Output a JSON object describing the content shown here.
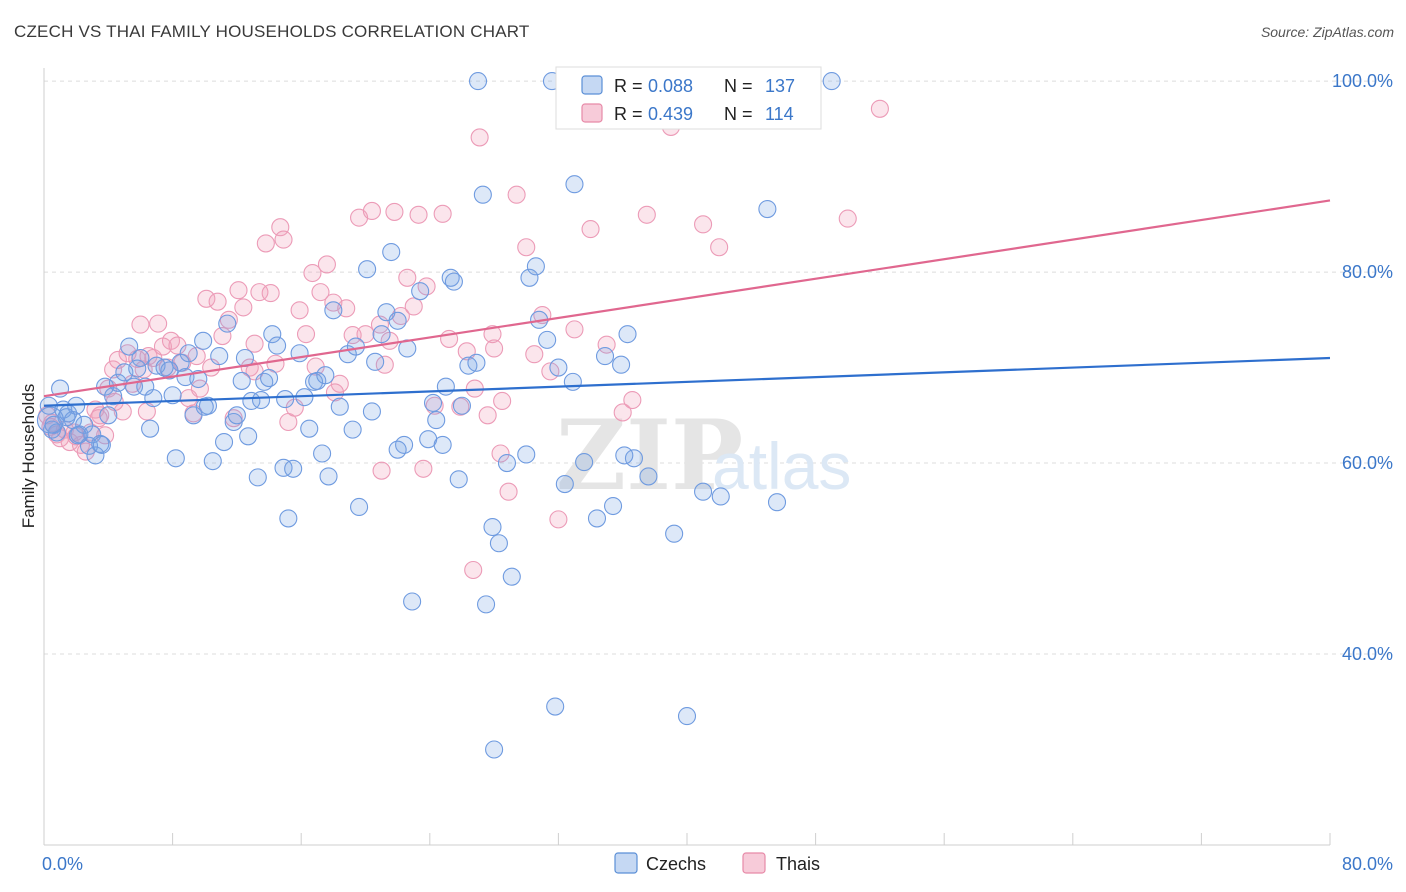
{
  "title": "CZECH VS THAI FAMILY HOUSEHOLDS CORRELATION CHART",
  "source": "Source: ZipAtlas.com",
  "watermark": {
    "zip": "ZIP",
    "atlas": "atlas"
  },
  "colors": {
    "czech": "#5b8fd6",
    "thai": "#e78aa8",
    "czech_line": "#2e6fce",
    "thai_line": "#e0678f",
    "axis_text": "#3b77c9"
  },
  "legend_top": [
    {
      "series": "Czechs",
      "r_label": "R =",
      "r_value": "0.088",
      "n_label": "N =",
      "n_value": "137"
    },
    {
      "series": "Thais",
      "r_label": "R =",
      "r_value": "0.439",
      "n_label": "N =",
      "n_value": "114"
    }
  ],
  "chart_data": {
    "type": "scatter",
    "title": "CZECH VS THAI FAMILY HOUSEHOLDS CORRELATION CHART",
    "xlabel": "",
    "ylabel": "Family Households",
    "xlim": [
      0,
      80
    ],
    "ylim": [
      20,
      102
    ],
    "x_tick_labels": [
      "0.0%",
      "80.0%"
    ],
    "y_tick_labels": [
      "40.0%",
      "60.0%",
      "80.0%",
      "100.0%"
    ],
    "y_ticks": [
      40,
      60,
      80,
      100
    ],
    "grid": "horizontal dashed",
    "legend_position": "bottom-center",
    "series": [
      {
        "name": "Czechs",
        "trend": {
          "x": [
            0,
            80
          ],
          "y": [
            66.0,
            71.0
          ]
        },
        "points": [
          [
            0.3,
            66.0
          ],
          [
            0.5,
            63.5
          ],
          [
            0.8,
            63.2
          ],
          [
            1.0,
            67.8
          ],
          [
            1.2,
            65.6
          ],
          [
            1.5,
            65.2
          ],
          [
            1.8,
            64.5
          ],
          [
            2.0,
            66.0
          ],
          [
            2.2,
            63.0
          ],
          [
            2.5,
            64.0
          ],
          [
            2.8,
            61.8
          ],
          [
            3.0,
            63.0
          ],
          [
            3.2,
            60.8
          ],
          [
            3.5,
            62.0
          ],
          [
            3.8,
            68.0
          ],
          [
            4.0,
            65.0
          ],
          [
            4.3,
            67.0
          ],
          [
            4.6,
            68.4
          ],
          [
            5.0,
            69.5
          ],
          [
            5.3,
            72.2
          ],
          [
            5.6,
            68.0
          ],
          [
            6.0,
            71.0
          ],
          [
            6.3,
            68.0
          ],
          [
            6.6,
            63.6
          ],
          [
            6.8,
            66.8
          ],
          [
            7.0,
            70.2
          ],
          [
            7.5,
            70.0
          ],
          [
            8.0,
            67.1
          ],
          [
            8.2,
            60.5
          ],
          [
            8.5,
            70.5
          ],
          [
            8.8,
            69.0
          ],
          [
            9.0,
            71.5
          ],
          [
            9.3,
            65.0
          ],
          [
            9.6,
            68.8
          ],
          [
            9.9,
            72.8
          ],
          [
            10.2,
            66.0
          ],
          [
            10.5,
            60.2
          ],
          [
            10.9,
            71.2
          ],
          [
            11.2,
            62.2
          ],
          [
            11.4,
            74.6
          ],
          [
            11.8,
            64.3
          ],
          [
            12.0,
            65.0
          ],
          [
            12.3,
            68.6
          ],
          [
            12.5,
            71.0
          ],
          [
            12.9,
            66.5
          ],
          [
            13.3,
            58.5
          ],
          [
            13.5,
            66.6
          ],
          [
            13.7,
            68.5
          ],
          [
            14.2,
            73.5
          ],
          [
            14.5,
            72.3
          ],
          [
            14.9,
            59.5
          ],
          [
            15.0,
            66.7
          ],
          [
            15.2,
            54.2
          ],
          [
            15.5,
            59.4
          ],
          [
            15.9,
            71.5
          ],
          [
            16.2,
            66.9
          ],
          [
            16.5,
            63.6
          ],
          [
            16.8,
            68.5
          ],
          [
            17.0,
            68.6
          ],
          [
            17.3,
            61.0
          ],
          [
            17.7,
            58.6
          ],
          [
            18.0,
            76.0
          ],
          [
            18.4,
            65.9
          ],
          [
            18.9,
            71.4
          ],
          [
            19.4,
            72.2
          ],
          [
            19.6,
            55.4
          ],
          [
            20.1,
            80.3
          ],
          [
            20.4,
            65.4
          ],
          [
            20.6,
            70.6
          ],
          [
            21.0,
            73.5
          ],
          [
            21.3,
            75.8
          ],
          [
            21.6,
            82.1
          ],
          [
            22.0,
            74.9
          ],
          [
            22.4,
            61.9
          ],
          [
            22.6,
            72.0
          ],
          [
            22.9,
            45.5
          ],
          [
            23.4,
            78.0
          ],
          [
            23.9,
            62.5
          ],
          [
            24.2,
            66.3
          ],
          [
            24.4,
            64.5
          ],
          [
            25.0,
            68.0
          ],
          [
            25.3,
            79.4
          ],
          [
            25.5,
            79.0
          ],
          [
            25.8,
            58.3
          ],
          [
            26.0,
            66.0
          ],
          [
            26.4,
            70.2
          ],
          [
            26.9,
            70.5
          ],
          [
            27.3,
            88.1
          ],
          [
            27.5,
            45.2
          ],
          [
            27.9,
            53.3
          ],
          [
            28.3,
            51.6
          ],
          [
            28.8,
            60.0
          ],
          [
            29.1,
            48.1
          ],
          [
            30.2,
            79.4
          ],
          [
            30.6,
            80.6
          ],
          [
            30.8,
            75.0
          ],
          [
            31.3,
            72.9
          ],
          [
            31.8,
            34.5
          ],
          [
            32.0,
            70.0
          ],
          [
            32.4,
            57.8
          ],
          [
            32.9,
            68.5
          ],
          [
            33.0,
            89.2
          ],
          [
            33.6,
            60.1
          ],
          [
            34.4,
            54.2
          ],
          [
            34.9,
            71.2
          ],
          [
            35.4,
            55.5
          ],
          [
            35.9,
            70.3
          ],
          [
            36.3,
            73.5
          ],
          [
            36.7,
            60.5
          ],
          [
            37.6,
            58.6
          ],
          [
            39.2,
            52.6
          ],
          [
            40.0,
            33.5
          ],
          [
            41.0,
            57.0
          ],
          [
            42.1,
            56.5
          ],
          [
            45.0,
            86.6
          ],
          [
            45.6,
            55.9
          ],
          [
            28.0,
            30.0
          ],
          [
            0.6,
            64.0
          ],
          [
            1.4,
            64.8
          ],
          [
            2.1,
            62.9
          ],
          [
            3.6,
            61.9
          ],
          [
            5.8,
            69.9
          ],
          [
            7.8,
            69.7
          ],
          [
            10.0,
            65.9
          ],
          [
            12.7,
            62.8
          ],
          [
            14.0,
            68.9
          ],
          [
            17.5,
            69.2
          ],
          [
            19.2,
            63.5
          ],
          [
            22.0,
            61.4
          ],
          [
            24.8,
            61.9
          ],
          [
            30.0,
            60.9
          ],
          [
            36.1,
            60.8
          ],
          [
            27.0,
            100.0
          ],
          [
            38.3,
            100.0
          ],
          [
            43.2,
            100.0
          ],
          [
            49.0,
            100.0
          ],
          [
            31.6,
            100.0
          ]
        ]
      },
      {
        "name": "Thais",
        "trend": {
          "x": [
            0,
            80
          ],
          "y": [
            67.0,
            87.5
          ]
        },
        "points": [
          [
            0.2,
            65.0
          ],
          [
            0.5,
            64.2
          ],
          [
            0.8,
            63.0
          ],
          [
            1.0,
            62.6
          ],
          [
            1.3,
            63.5
          ],
          [
            1.6,
            62.2
          ],
          [
            2.0,
            62.8
          ],
          [
            2.3,
            61.9
          ],
          [
            2.6,
            61.2
          ],
          [
            2.9,
            63.2
          ],
          [
            3.2,
            65.6
          ],
          [
            3.5,
            65.0
          ],
          [
            3.8,
            62.9
          ],
          [
            4.0,
            67.8
          ],
          [
            4.3,
            69.8
          ],
          [
            4.6,
            70.8
          ],
          [
            4.9,
            65.4
          ],
          [
            5.2,
            71.5
          ],
          [
            5.5,
            68.3
          ],
          [
            5.8,
            70.9
          ],
          [
            6.0,
            74.5
          ],
          [
            6.2,
            69.8
          ],
          [
            6.5,
            71.2
          ],
          [
            6.8,
            71.0
          ],
          [
            7.1,
            74.6
          ],
          [
            7.4,
            72.2
          ],
          [
            7.7,
            70.0
          ],
          [
            7.9,
            72.8
          ],
          [
            8.3,
            72.3
          ],
          [
            8.6,
            70.5
          ],
          [
            9.0,
            66.8
          ],
          [
            9.3,
            65.2
          ],
          [
            9.7,
            67.8
          ],
          [
            10.1,
            77.2
          ],
          [
            10.4,
            70.0
          ],
          [
            10.8,
            76.9
          ],
          [
            11.1,
            73.3
          ],
          [
            11.5,
            75.0
          ],
          [
            11.8,
            64.7
          ],
          [
            12.1,
            78.1
          ],
          [
            12.4,
            76.3
          ],
          [
            12.8,
            70.0
          ],
          [
            13.1,
            69.6
          ],
          [
            13.4,
            77.9
          ],
          [
            13.8,
            83.0
          ],
          [
            14.1,
            77.8
          ],
          [
            14.4,
            70.4
          ],
          [
            14.7,
            84.7
          ],
          [
            14.9,
            83.4
          ],
          [
            15.2,
            64.3
          ],
          [
            15.6,
            65.8
          ],
          [
            15.9,
            76.0
          ],
          [
            16.3,
            73.5
          ],
          [
            16.7,
            79.9
          ],
          [
            16.9,
            70.1
          ],
          [
            17.2,
            77.9
          ],
          [
            17.6,
            80.8
          ],
          [
            18.0,
            76.8
          ],
          [
            18.4,
            68.3
          ],
          [
            18.8,
            76.2
          ],
          [
            19.2,
            73.4
          ],
          [
            19.6,
            85.7
          ],
          [
            20.0,
            73.5
          ],
          [
            20.4,
            86.4
          ],
          [
            20.9,
            74.5
          ],
          [
            21.2,
            70.3
          ],
          [
            21.5,
            72.8
          ],
          [
            21.8,
            86.3
          ],
          [
            22.2,
            75.4
          ],
          [
            22.6,
            79.4
          ],
          [
            23.0,
            76.4
          ],
          [
            23.3,
            86.0
          ],
          [
            23.8,
            78.5
          ],
          [
            24.3,
            66.0
          ],
          [
            24.8,
            86.1
          ],
          [
            25.2,
            73.0
          ],
          [
            25.9,
            65.9
          ],
          [
            26.3,
            71.7
          ],
          [
            26.7,
            48.8
          ],
          [
            27.1,
            94.1
          ],
          [
            27.6,
            65.0
          ],
          [
            28.0,
            72.0
          ],
          [
            28.5,
            66.5
          ],
          [
            28.9,
            57.0
          ],
          [
            29.4,
            88.1
          ],
          [
            30.0,
            82.6
          ],
          [
            30.5,
            71.4
          ],
          [
            31.0,
            75.5
          ],
          [
            31.5,
            69.6
          ],
          [
            32.0,
            54.1
          ],
          [
            33.0,
            74.0
          ],
          [
            34.0,
            84.5
          ],
          [
            35.0,
            72.4
          ],
          [
            36.0,
            65.3
          ],
          [
            36.6,
            66.6
          ],
          [
            37.5,
            86.0
          ],
          [
            39.0,
            95.2
          ],
          [
            41.0,
            85.0
          ],
          [
            42.0,
            82.6
          ],
          [
            50.0,
            85.6
          ],
          [
            52.0,
            97.1
          ],
          [
            4.4,
            66.4
          ],
          [
            9.5,
            71.2
          ],
          [
            18.1,
            67.4
          ],
          [
            27.9,
            73.5
          ],
          [
            21.0,
            59.2
          ],
          [
            23.6,
            59.4
          ],
          [
            0.4,
            63.8
          ],
          [
            1.9,
            63.2
          ],
          [
            3.4,
            64.7
          ],
          [
            6.4,
            65.4
          ],
          [
            13.1,
            72.5
          ],
          [
            28.4,
            61.0
          ],
          [
            26.8,
            67.8
          ]
        ]
      }
    ]
  }
}
